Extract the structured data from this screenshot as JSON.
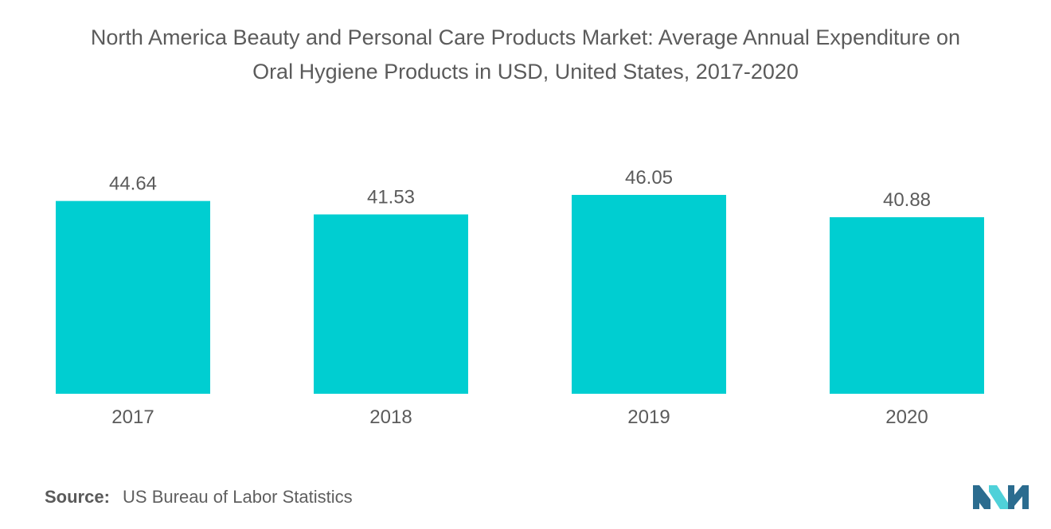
{
  "title_lines": [
    "North America Beauty and Personal Care Products Market: Average Annual Expenditure on",
    "Oral Hygiene Products in USD, United States, 2017-2020"
  ],
  "source": {
    "label": "Source:",
    "text": "US Bureau of Labor Statistics"
  },
  "colors": {
    "bar": "#00CED1",
    "text": "#5b5b5b",
    "logo_dark": "#2B6C8F",
    "logo_light": "#4FD1D9"
  },
  "chart_data": {
    "type": "bar",
    "title": "North America Beauty and Personal Care Products Market: Average Annual Expenditure on Oral Hygiene Products in USD, United States, 2017-2020",
    "categories": [
      "2017",
      "2018",
      "2019",
      "2020"
    ],
    "values": [
      44.64,
      41.53,
      46.05,
      40.88
    ],
    "value_labels": [
      "44.64",
      "41.53",
      "46.05",
      "40.88"
    ],
    "xlabel": "",
    "ylabel": "",
    "ylim": [
      0,
      46.05
    ],
    "grid": false,
    "legend": "none"
  }
}
